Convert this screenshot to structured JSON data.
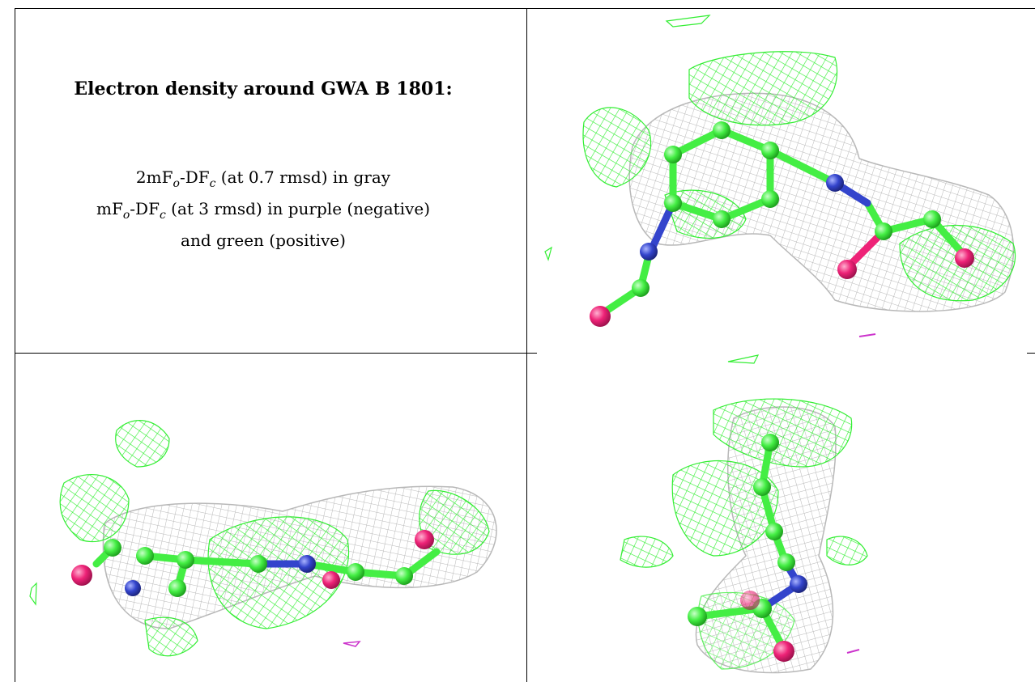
{
  "caption": {
    "title": "Electron density around GWA B 1801:",
    "line1": {
      "pre": "2mF",
      "sub1": "o",
      "mid": "-DF",
      "sub2": "c",
      "post": " (at 0.7 rmsd) in gray"
    },
    "line2": {
      "pre": "mF",
      "sub1": "o",
      "mid": "-DF",
      "sub2": "c",
      "post": " (at 3 rmsd) in purple (negative)"
    },
    "line3": "and green (positive)"
  },
  "colors": {
    "positive_mesh": "#33ee33",
    "negative_mesh": "#cc33cc",
    "twofofc_mesh": "#b8b8b8",
    "carbon": "#44ee44",
    "nitrogen": "#3344cc",
    "oxygen": "#ee2277",
    "border": "#000000"
  },
  "panels": [
    {
      "name": "view-1",
      "kind": "molecular-render"
    },
    {
      "name": "view-2",
      "kind": "molecular-render"
    },
    {
      "name": "view-3",
      "kind": "molecular-render"
    }
  ]
}
